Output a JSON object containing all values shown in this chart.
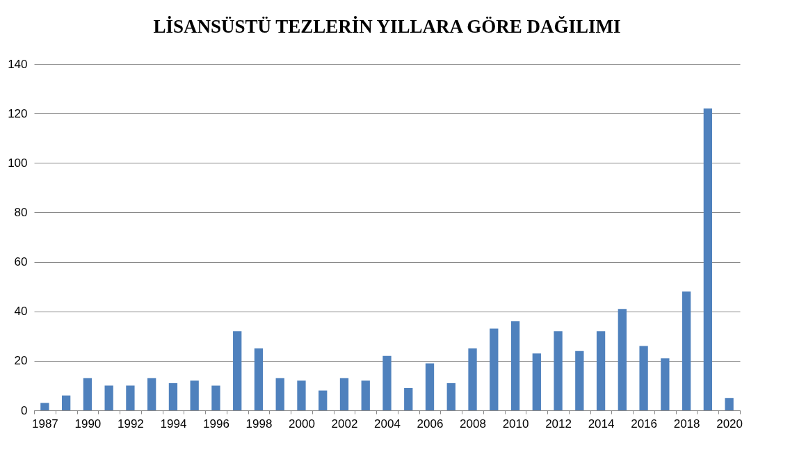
{
  "chart_data": {
    "type": "bar",
    "title": "LİSANSÜSTÜ TEZLERİN YILLARA GÖRE DAĞILIMI",
    "categories": [
      "1987",
      null,
      "1990",
      null,
      "1992",
      null,
      "1994",
      null,
      "1996",
      null,
      "1998",
      null,
      "2000",
      null,
      "2002",
      null,
      "2004",
      null,
      "2006",
      null,
      "2008",
      null,
      "2010",
      null,
      "2012",
      null,
      "2014",
      null,
      "2016",
      null,
      "2018",
      null,
      "2020"
    ],
    "values": [
      3,
      6,
      13,
      10,
      10,
      13,
      11,
      12,
      10,
      32,
      25,
      13,
      12,
      8,
      13,
      12,
      22,
      9,
      19,
      11,
      25,
      33,
      36,
      23,
      32,
      24,
      32,
      41,
      26,
      21,
      48,
      122,
      5
    ],
    "color": "#4f81bd",
    "ylim": [
      0,
      140
    ],
    "yticks": [
      0,
      20,
      40,
      60,
      80,
      100,
      120,
      140
    ],
    "grid": "y"
  }
}
